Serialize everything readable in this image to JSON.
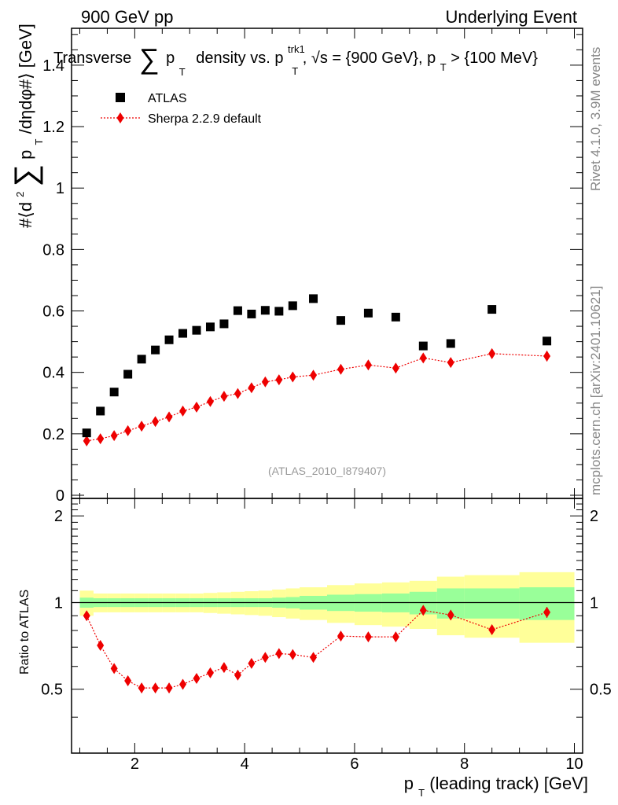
{
  "header": {
    "left": "900 GeV pp",
    "right": "Underlying Event"
  },
  "sidebar": {
    "rivet": "Rivet 4.1.0,  3.9M events",
    "mcplots": "mcplots.cern.ch [arXiv:2401.10621]"
  },
  "colors": {
    "atlas": "#000000",
    "sherpa": "#ee0000",
    "band_outer": "#ffff99",
    "band_inner": "#99ff99"
  },
  "chart_data": {
    "type": "scatter",
    "title": "Transverse ∑ p_T density vs. p_T^trk1, √s = {900 GeV}, p_T > {100 MeV}",
    "title_parts": [
      "Transverse",
      "∑",
      "p",
      "T",
      "density vs. p",
      "trk1",
      "T",
      ", √s = {900 GeV}, p",
      "T",
      " > {100 MeV}"
    ],
    "xlabel_parts": [
      "p",
      "T",
      " (leading track) [GeV]"
    ],
    "ylabel_parts": [
      "#⟨d",
      "2",
      "∑",
      "p",
      "T",
      "/dηdφ#⟩ [GeV]"
    ],
    "ratio_ylabel": "Ratio to ATLAS",
    "analysis_label": "(ATLAS_2010_I879407)",
    "xlim": [
      0.85,
      10.15
    ],
    "ylim": [
      0,
      1.52
    ],
    "ratio_ylim": [
      0.3,
      2.3
    ],
    "x_major_ticks": [
      2,
      4,
      6,
      8,
      10
    ],
    "x_tick_labels": [
      "2",
      "4",
      "6",
      "8",
      "10"
    ],
    "y_major_ticks": [
      0,
      0.2,
      0.4,
      0.6,
      0.8,
      1,
      1.2,
      1.4
    ],
    "y_tick_labels": [
      "0",
      "0.2",
      "0.4",
      "0.6",
      "0.8",
      "1",
      "1.2",
      "1.4"
    ],
    "ratio_major_ticks": [
      0.5,
      1,
      2
    ],
    "ratio_tick_labels": [
      "0.5",
      "1",
      "2"
    ],
    "legend_position": "top-left",
    "series": [
      {
        "name": "ATLAS",
        "marker": "square",
        "x": [
          1.125,
          1.375,
          1.625,
          1.875,
          2.125,
          2.375,
          2.625,
          2.875,
          3.125,
          3.375,
          3.625,
          3.875,
          4.125,
          4.375,
          4.625,
          4.875,
          5.25,
          5.75,
          6.25,
          6.75,
          7.25,
          7.75,
          8.5,
          9.5
        ],
        "y": [
          0.203,
          0.274,
          0.336,
          0.394,
          0.443,
          0.473,
          0.506,
          0.527,
          0.537,
          0.548,
          0.558,
          0.601,
          0.59,
          0.602,
          0.599,
          0.617,
          0.64,
          0.569,
          0.593,
          0.58,
          0.486,
          0.494,
          0.605,
          0.502
        ]
      },
      {
        "name": "Sherpa 2.2.9 default",
        "marker": "diamond",
        "x": [
          1.125,
          1.375,
          1.625,
          1.875,
          2.125,
          2.375,
          2.625,
          2.875,
          3.125,
          3.375,
          3.625,
          3.875,
          4.125,
          4.375,
          4.625,
          4.875,
          5.25,
          5.75,
          6.25,
          6.75,
          7.25,
          7.75,
          8.5,
          9.5
        ],
        "y": [
          0.177,
          0.184,
          0.194,
          0.21,
          0.225,
          0.24,
          0.255,
          0.274,
          0.287,
          0.305,
          0.322,
          0.331,
          0.35,
          0.369,
          0.376,
          0.385,
          0.391,
          0.41,
          0.424,
          0.414,
          0.447,
          0.432,
          0.461,
          0.453
        ],
        "yerr": [
          0.006,
          0.006,
          0.006,
          0.006,
          0.006,
          0.006,
          0.006,
          0.006,
          0.006,
          0.006,
          0.006,
          0.006,
          0.006,
          0.006,
          0.006,
          0.006,
          0.007,
          0.008,
          0.009,
          0.01,
          0.012,
          0.012,
          0.013,
          0.017
        ],
        "ratio": [
          0.9,
          0.71,
          0.59,
          0.535,
          0.505,
          0.505,
          0.505,
          0.52,
          0.545,
          0.57,
          0.595,
          0.56,
          0.615,
          0.645,
          0.665,
          0.66,
          0.645,
          0.765,
          0.76,
          0.76,
          0.94,
          0.905,
          0.805,
          0.925
        ],
        "ratio_err": [
          0.02,
          0.02,
          0.02,
          0.02,
          0.02,
          0.02,
          0.02,
          0.02,
          0.02,
          0.02,
          0.02,
          0.02,
          0.02,
          0.02,
          0.02,
          0.02,
          0.02,
          0.02,
          0.02,
          0.02,
          0.03,
          0.03,
          0.03,
          0.04
        ]
      }
    ],
    "bands": {
      "edges": [
        1.0,
        1.25,
        1.5,
        1.75,
        2.0,
        2.25,
        2.5,
        2.75,
        3.0,
        3.25,
        3.5,
        3.75,
        4.0,
        4.25,
        4.5,
        4.75,
        5.0,
        5.5,
        6.0,
        6.5,
        7.0,
        7.5,
        8.0,
        9.0,
        10.0
      ],
      "inner_hi": [
        1.04,
        1.035,
        1.035,
        1.035,
        1.035,
        1.035,
        1.035,
        1.035,
        1.035,
        1.035,
        1.035,
        1.035,
        1.035,
        1.035,
        1.04,
        1.045,
        1.055,
        1.065,
        1.07,
        1.075,
        1.09,
        1.12,
        1.12,
        1.13
      ],
      "inner_lo": [
        0.96,
        0.965,
        0.965,
        0.965,
        0.965,
        0.965,
        0.965,
        0.965,
        0.965,
        0.965,
        0.965,
        0.965,
        0.965,
        0.965,
        0.96,
        0.955,
        0.945,
        0.935,
        0.93,
        0.925,
        0.91,
        0.88,
        0.88,
        0.87
      ],
      "outer_hi": [
        1.1,
        1.075,
        1.075,
        1.075,
        1.075,
        1.075,
        1.075,
        1.075,
        1.075,
        1.08,
        1.085,
        1.09,
        1.095,
        1.1,
        1.11,
        1.12,
        1.13,
        1.15,
        1.165,
        1.175,
        1.19,
        1.23,
        1.245,
        1.275
      ],
      "outer_lo": [
        0.9,
        0.925,
        0.925,
        0.925,
        0.925,
        0.925,
        0.925,
        0.925,
        0.925,
        0.92,
        0.915,
        0.91,
        0.905,
        0.9,
        0.89,
        0.88,
        0.87,
        0.85,
        0.835,
        0.825,
        0.81,
        0.77,
        0.755,
        0.725
      ]
    }
  }
}
